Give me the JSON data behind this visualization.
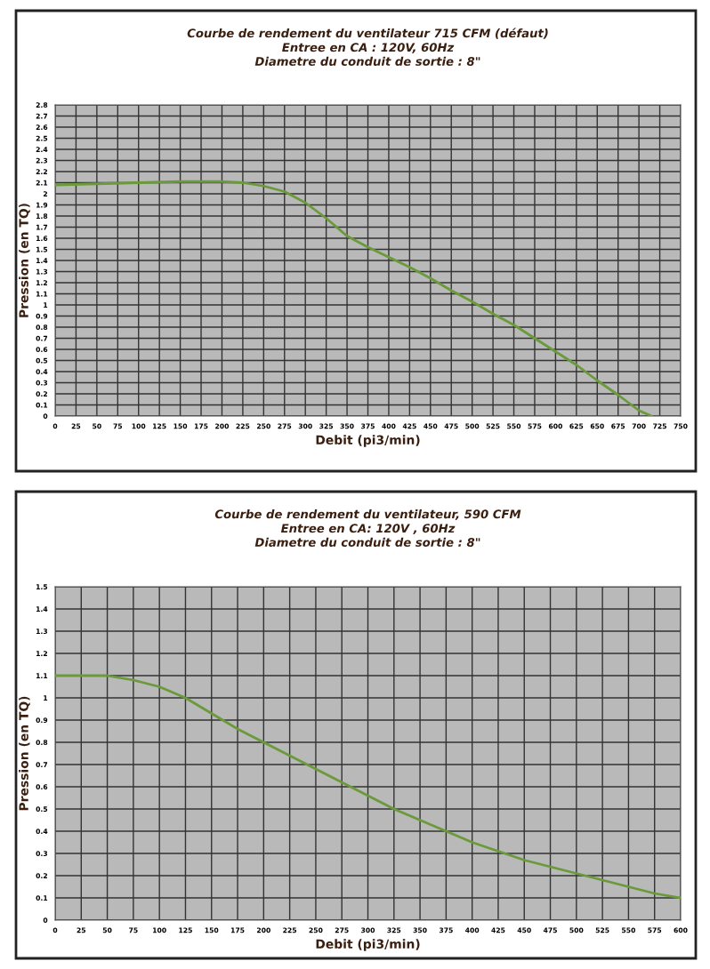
{
  "chart_data": [
    {
      "type": "line",
      "title": "Courbe de rendement du ventilateur 715 CFM (défaut)",
      "subtitle": "Entree en CA : 120V, 60Hz\nDiametre du conduit de sortie : 8\"",
      "xlabel": "Debit (pi3/min)",
      "ylabel": "Pression (en TQ)",
      "x": [
        0,
        50,
        100,
        150,
        200,
        225,
        250,
        275,
        300,
        325,
        350,
        375,
        400,
        425,
        450,
        475,
        500,
        525,
        550,
        575,
        600,
        625,
        650,
        675,
        700,
        715
      ],
      "series": [
        {
          "color": "#6a9a3a",
          "values": [
            2.08,
            2.09,
            2.1,
            2.11,
            2.11,
            2.1,
            2.07,
            2.02,
            1.92,
            1.78,
            1.62,
            1.52,
            1.43,
            1.34,
            1.24,
            1.13,
            1.03,
            0.92,
            0.82,
            0.7,
            0.58,
            0.46,
            0.32,
            0.19,
            0.05,
            0
          ]
        }
      ],
      "xlim": [
        0,
        750
      ],
      "xticks": [
        0,
        25,
        50,
        75,
        100,
        125,
        150,
        175,
        200,
        225,
        250,
        275,
        300,
        325,
        350,
        375,
        400,
        425,
        450,
        475,
        500,
        525,
        550,
        575,
        600,
        625,
        650,
        675,
        700,
        725,
        750
      ],
      "ylim": [
        0,
        2.8
      ],
      "yticks": [
        0,
        0.1,
        0.2,
        0.3,
        0.4,
        0.5,
        0.6,
        0.7,
        0.8,
        0.9,
        1,
        1.1,
        1.2,
        1.3,
        1.4,
        1.5,
        1.6,
        1.7,
        1.8,
        1.9,
        2,
        2.1,
        2.2,
        2.3,
        2.4,
        2.5,
        2.6,
        2.7,
        2.8
      ],
      "grid": true,
      "marker": "none",
      "line_style": "solid"
    },
    {
      "type": "line",
      "title": "Courbe de rendement du ventilateur, 590 CFM",
      "subtitle": "Entree en CA: 120V , 60Hz\nDiametre du conduit de sortie : 8\"",
      "xlabel": "Debit (pi3/min)",
      "ylabel": "Pression (en TQ)",
      "x": [
        0,
        50,
        75,
        100,
        125,
        150,
        175,
        200,
        225,
        250,
        275,
        300,
        325,
        350,
        375,
        400,
        425,
        450,
        475,
        500,
        525,
        550,
        575,
        600
      ],
      "series": [
        {
          "color": "#6a9a3a",
          "values": [
            1.1,
            1.1,
            1.08,
            1.05,
            1.0,
            0.93,
            0.86,
            0.8,
            0.74,
            0.68,
            0.62,
            0.56,
            0.5,
            0.45,
            0.4,
            0.35,
            0.31,
            0.27,
            0.24,
            0.21,
            0.18,
            0.15,
            0.12,
            0.1
          ]
        }
      ],
      "xlim": [
        0,
        600
      ],
      "xticks": [
        0,
        25,
        50,
        75,
        100,
        125,
        150,
        175,
        200,
        225,
        250,
        275,
        300,
        325,
        350,
        375,
        400,
        425,
        450,
        475,
        500,
        525,
        550,
        575,
        600
      ],
      "ylim": [
        0,
        1.5
      ],
      "yticks": [
        0,
        0.1,
        0.2,
        0.3,
        0.4,
        0.5,
        0.6,
        0.7,
        0.8,
        0.9,
        1,
        1.1,
        1.2,
        1.3,
        1.4,
        1.5
      ],
      "grid": true,
      "marker": "none",
      "line_style": "solid"
    }
  ]
}
